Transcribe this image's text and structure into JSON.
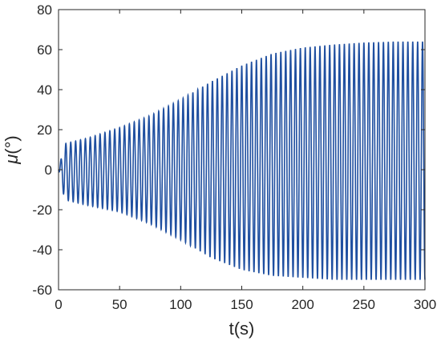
{
  "chart_data": {
    "type": "line",
    "title": "",
    "xlabel": "t(s)",
    "ylabel_symbol": "μ",
    "ylabel_unit": "(°)",
    "xlim": [
      0,
      300
    ],
    "ylim": [
      -60,
      80
    ],
    "xticks": [
      0,
      50,
      100,
      150,
      200,
      250,
      300
    ],
    "yticks": [
      -60,
      -40,
      -20,
      0,
      20,
      40,
      60,
      80
    ],
    "xtick_labels": [
      "0",
      "50",
      "100",
      "150",
      "200",
      "250",
      "300"
    ],
    "ytick_labels": [
      "-60",
      "-40",
      "-20",
      "0",
      "20",
      "40",
      "60",
      "80"
    ],
    "grid": false,
    "legend": "none",
    "series": [
      {
        "color": "#1f4fa0",
        "oscillation_period_s": 4,
        "upper_envelope": {
          "t": [
            0,
            5,
            25,
            50,
            75,
            100,
            125,
            150,
            175,
            200,
            225,
            250,
            275,
            300
          ],
          "value": [
            0,
            13,
            16,
            21,
            27,
            35,
            44,
            52,
            58,
            61,
            62.5,
            63.5,
            64,
            64
          ]
        },
        "lower_envelope": {
          "t": [
            0,
            5,
            25,
            50,
            75,
            100,
            125,
            150,
            175,
            200,
            225,
            250,
            275,
            300
          ],
          "value": [
            0,
            -15,
            -18,
            -21,
            -27,
            -35,
            -44,
            -50,
            -53,
            -54,
            -55,
            -55,
            -55,
            -55
          ]
        }
      }
    ]
  }
}
